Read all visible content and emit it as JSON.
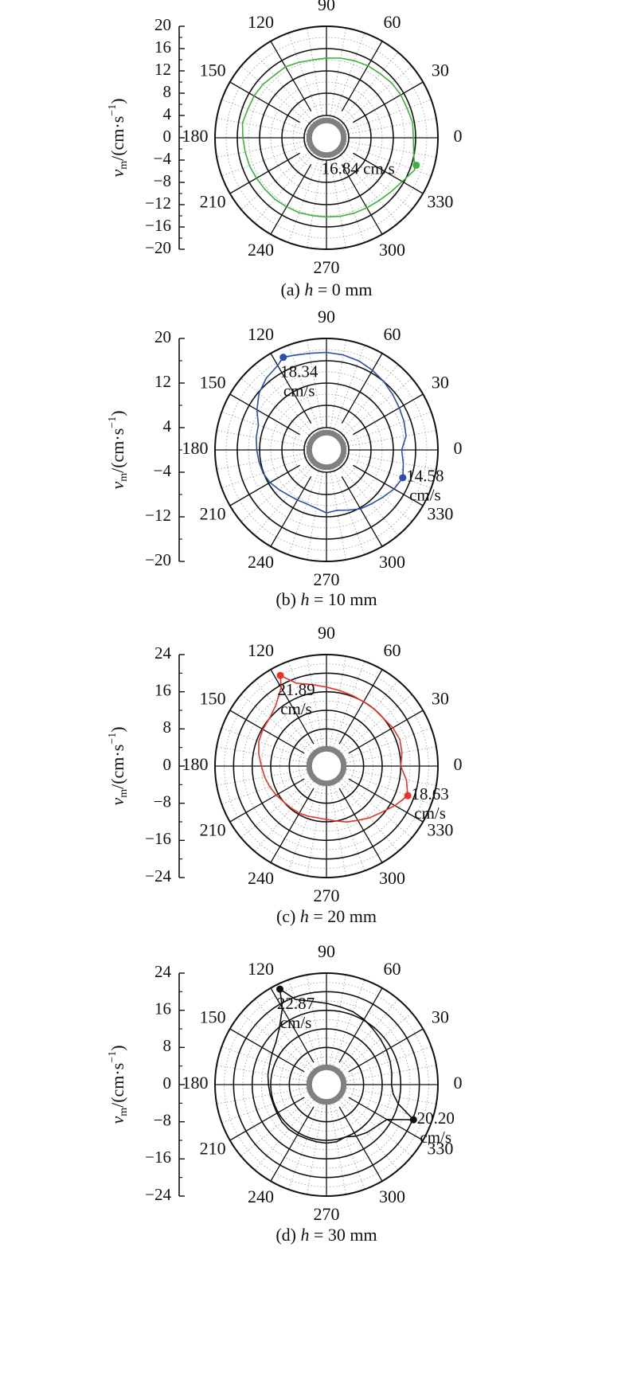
{
  "figure": {
    "ylabel_main": "v",
    "ylabel_sub": "m",
    "ylabel_unit": "/(cm·s",
    "ylabel_exp": "−1",
    "ylabel_close": ")"
  },
  "chart_data": [
    {
      "type": "polar-line",
      "caption": "(a) h = 0 mm",
      "caption_prefix": "(a) ",
      "caption_var": "h",
      "caption_suffix": " = 0 mm",
      "angle_labels": [
        "0",
        "30",
        "60",
        "90",
        "120",
        "150",
        "180",
        "210",
        "240",
        "270",
        "300",
        "330"
      ],
      "yaxis_ticks": [
        "20",
        "16",
        "12",
        "8",
        "4",
        "0",
        "−4",
        "−8",
        "−12",
        "−16",
        "−20"
      ],
      "ylim": [
        -20,
        20
      ],
      "rings": [
        4,
        8,
        12,
        16,
        20
      ],
      "color": "#3db23a",
      "series": {
        "theta": [
          0,
          10,
          20,
          30,
          40,
          50,
          60,
          70,
          80,
          90,
          100,
          110,
          120,
          130,
          140,
          150,
          160,
          170,
          180,
          190,
          200,
          210,
          220,
          230,
          240,
          250,
          260,
          270,
          280,
          290,
          300,
          310,
          320,
          330,
          340,
          350
        ],
        "r": [
          15.6,
          15.7,
          15.4,
          15.4,
          15.3,
          15.0,
          14.9,
          14.7,
          14.5,
          14.3,
          14.2,
          14.4,
          14.7,
          14.6,
          14.9,
          15.0,
          15.0,
          15.3,
          15.0,
          14.8,
          14.7,
          14.5,
          14.4,
          14.4,
          14.3,
          14.3,
          14.2,
          14.2,
          14.3,
          14.4,
          14.5,
          14.7,
          15.1,
          15.7,
          16.84,
          15.9
        ]
      },
      "highlight": {
        "theta": 343,
        "r": 16.84,
        "label_lines": [
          "16.84 cm/s"
        ]
      }
    },
    {
      "type": "polar-line",
      "caption": "(b) h = 10 mm",
      "caption_prefix": "(b) ",
      "caption_var": "h",
      "caption_suffix": " = 10 mm",
      "angle_labels": [
        "0",
        "30",
        "60",
        "90",
        "120",
        "150",
        "180",
        "210",
        "240",
        "270",
        "300",
        "330"
      ],
      "yaxis_ticks": [
        "20",
        "12",
        "4",
        "−4",
        "−12",
        "−20"
      ],
      "ylim": [
        -20,
        20
      ],
      "rings": [
        4,
        8,
        12,
        16,
        20
      ],
      "color": "#2a4fa8",
      "series": {
        "theta": [
          0,
          10,
          20,
          30,
          40,
          50,
          60,
          70,
          80,
          90,
          100,
          110,
          115,
          120,
          130,
          140,
          150,
          160,
          170,
          180,
          190,
          200,
          210,
          220,
          230,
          240,
          250,
          260,
          270,
          280,
          290,
          300,
          310,
          320,
          330,
          340,
          350
        ],
        "r": [
          13.5,
          14.5,
          14.8,
          15.1,
          15.5,
          16.0,
          16.5,
          17.0,
          17.3,
          17.5,
          17.6,
          18.0,
          18.34,
          17.5,
          16.8,
          15.8,
          14.4,
          13.0,
          12.8,
          12.5,
          12.3,
          12.1,
          11.7,
          11.1,
          10.6,
          10.4,
          10.3,
          10.6,
          11.3,
          11.0,
          11.5,
          12.2,
          12.6,
          13.2,
          14.0,
          14.58,
          14.0
        ]
      },
      "highlight": {
        "theta": 340,
        "r": 14.58,
        "label_lines": [
          "14.58",
          "cm/s"
        ]
      },
      "highlight2": {
        "theta": 115,
        "r": 18.34,
        "label_lines": [
          "18.34",
          "cm/s"
        ]
      }
    },
    {
      "type": "polar-line",
      "caption": "(c) h = 20 mm",
      "caption_prefix": "(c) ",
      "caption_var": "h",
      "caption_suffix": " = 20 mm",
      "angle_labels": [
        "0",
        "30",
        "60",
        "90",
        "120",
        "150",
        "180",
        "210",
        "240",
        "270",
        "300",
        "330"
      ],
      "yaxis_ticks": [
        "24",
        "16",
        "8",
        "0",
        "−8",
        "−16",
        "−24"
      ],
      "ylim": [
        -24,
        24
      ],
      "rings": [
        4,
        8,
        12,
        16,
        20,
        24
      ],
      "color": "#e8322a",
      "series": {
        "theta": [
          0,
          10,
          20,
          30,
          40,
          50,
          60,
          70,
          80,
          90,
          100,
          110,
          117,
          120,
          130,
          140,
          150,
          160,
          170,
          180,
          190,
          200,
          210,
          220,
          230,
          240,
          250,
          260,
          270,
          280,
          290,
          300,
          310,
          320,
          330,
          340,
          350
        ],
        "r": [
          16.0,
          16.5,
          16.8,
          16.5,
          16.0,
          16.0,
          16.0,
          16.2,
          16.5,
          17.0,
          17.8,
          19.0,
          21.89,
          19.5,
          17.0,
          16.0,
          15.8,
          15.5,
          14.8,
          14.0,
          13.5,
          13.0,
          12.5,
          12.0,
          11.8,
          11.7,
          11.5,
          11.3,
          11.5,
          12.0,
          12.8,
          13.5,
          14.5,
          15.5,
          17.0,
          18.63,
          17.5
        ]
      },
      "highlight": {
        "theta": 340,
        "r": 18.63,
        "label_lines": [
          "18.63",
          "cm/s"
        ]
      },
      "highlight2": {
        "theta": 117,
        "r": 21.89,
        "label_lines": [
          "21.89",
          "cm/s"
        ]
      }
    },
    {
      "type": "polar-line",
      "caption": "(d) h = 30 mm",
      "caption_prefix": "(d) ",
      "caption_var": "h",
      "caption_suffix": " = 30 mm",
      "angle_labels": [
        "0",
        "30",
        "60",
        "90",
        "120",
        "150",
        "180",
        "210",
        "240",
        "270",
        "300",
        "330"
      ],
      "yaxis_ticks": [
        "24",
        "16",
        "8",
        "0",
        "−8",
        "−16",
        "−24"
      ],
      "ylim": [
        -24,
        24
      ],
      "rings": [
        4,
        8,
        12,
        16,
        20,
        24
      ],
      "color": "#111111",
      "series": {
        "theta": [
          0,
          10,
          20,
          30,
          40,
          50,
          60,
          70,
          80,
          90,
          100,
          110,
          116,
          120,
          130,
          140,
          150,
          160,
          170,
          180,
          190,
          200,
          210,
          220,
          230,
          240,
          250,
          260,
          270,
          280,
          290,
          300,
          310,
          320,
          330,
          338,
          345,
          352
        ],
        "r": [
          14.0,
          14.3,
          14.6,
          14.9,
          15.2,
          15.6,
          16.2,
          16.7,
          17.0,
          17.5,
          18.2,
          19.5,
          22.87,
          19.0,
          15.8,
          14.2,
          13.5,
          13.0,
          12.8,
          12.5,
          12.3,
          12.2,
          12.3,
          12.5,
          12.6,
          12.5,
          12.4,
          12.5,
          12.6,
          12.5,
          12.0,
          12.8,
          13.5,
          14.0,
          15.0,
          20.2,
          16.0,
          14.5
        ]
      },
      "highlight": {
        "theta": 338,
        "r": 20.2,
        "label_lines": [
          "20.20",
          "cm/s"
        ]
      },
      "highlight2": {
        "theta": 116,
        "r": 22.87,
        "label_lines": [
          "22.87",
          "cm/s"
        ]
      }
    }
  ]
}
